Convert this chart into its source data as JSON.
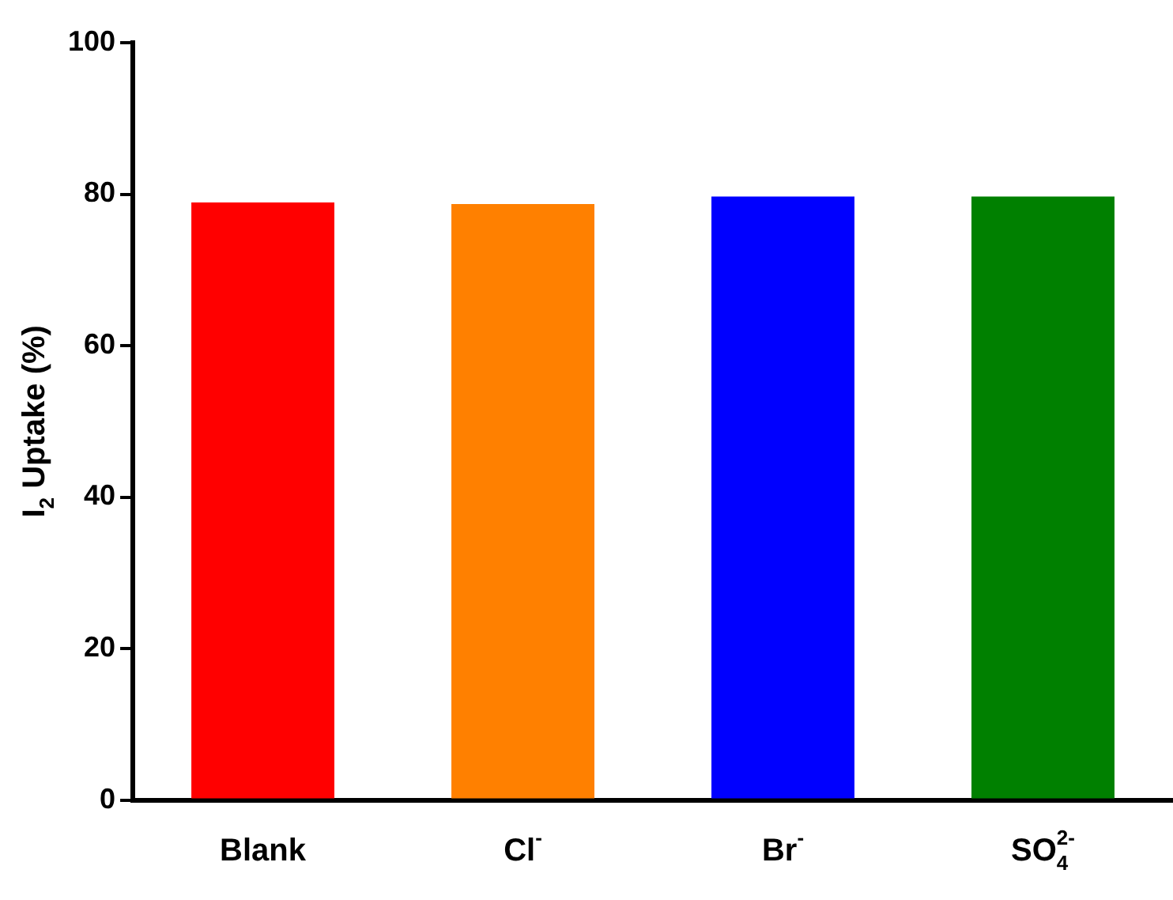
{
  "chart_data": {
    "type": "bar",
    "ylabel": "I$_{2}$ Uptake (%)",
    "categories": [
      "Blank",
      "Cl$^{-}$",
      "Br$^{-}$",
      "SO$_{4}$$^{2-}$"
    ],
    "values": [
      78.9,
      78.7,
      79.7,
      79.7
    ],
    "colors": [
      "#ff0000",
      "#ff8000",
      "#0000ff",
      "#008000"
    ],
    "ylim": [
      0,
      100
    ],
    "yticks": [
      0,
      20,
      40,
      60,
      80,
      100
    ],
    "grid": false,
    "legend": false
  }
}
